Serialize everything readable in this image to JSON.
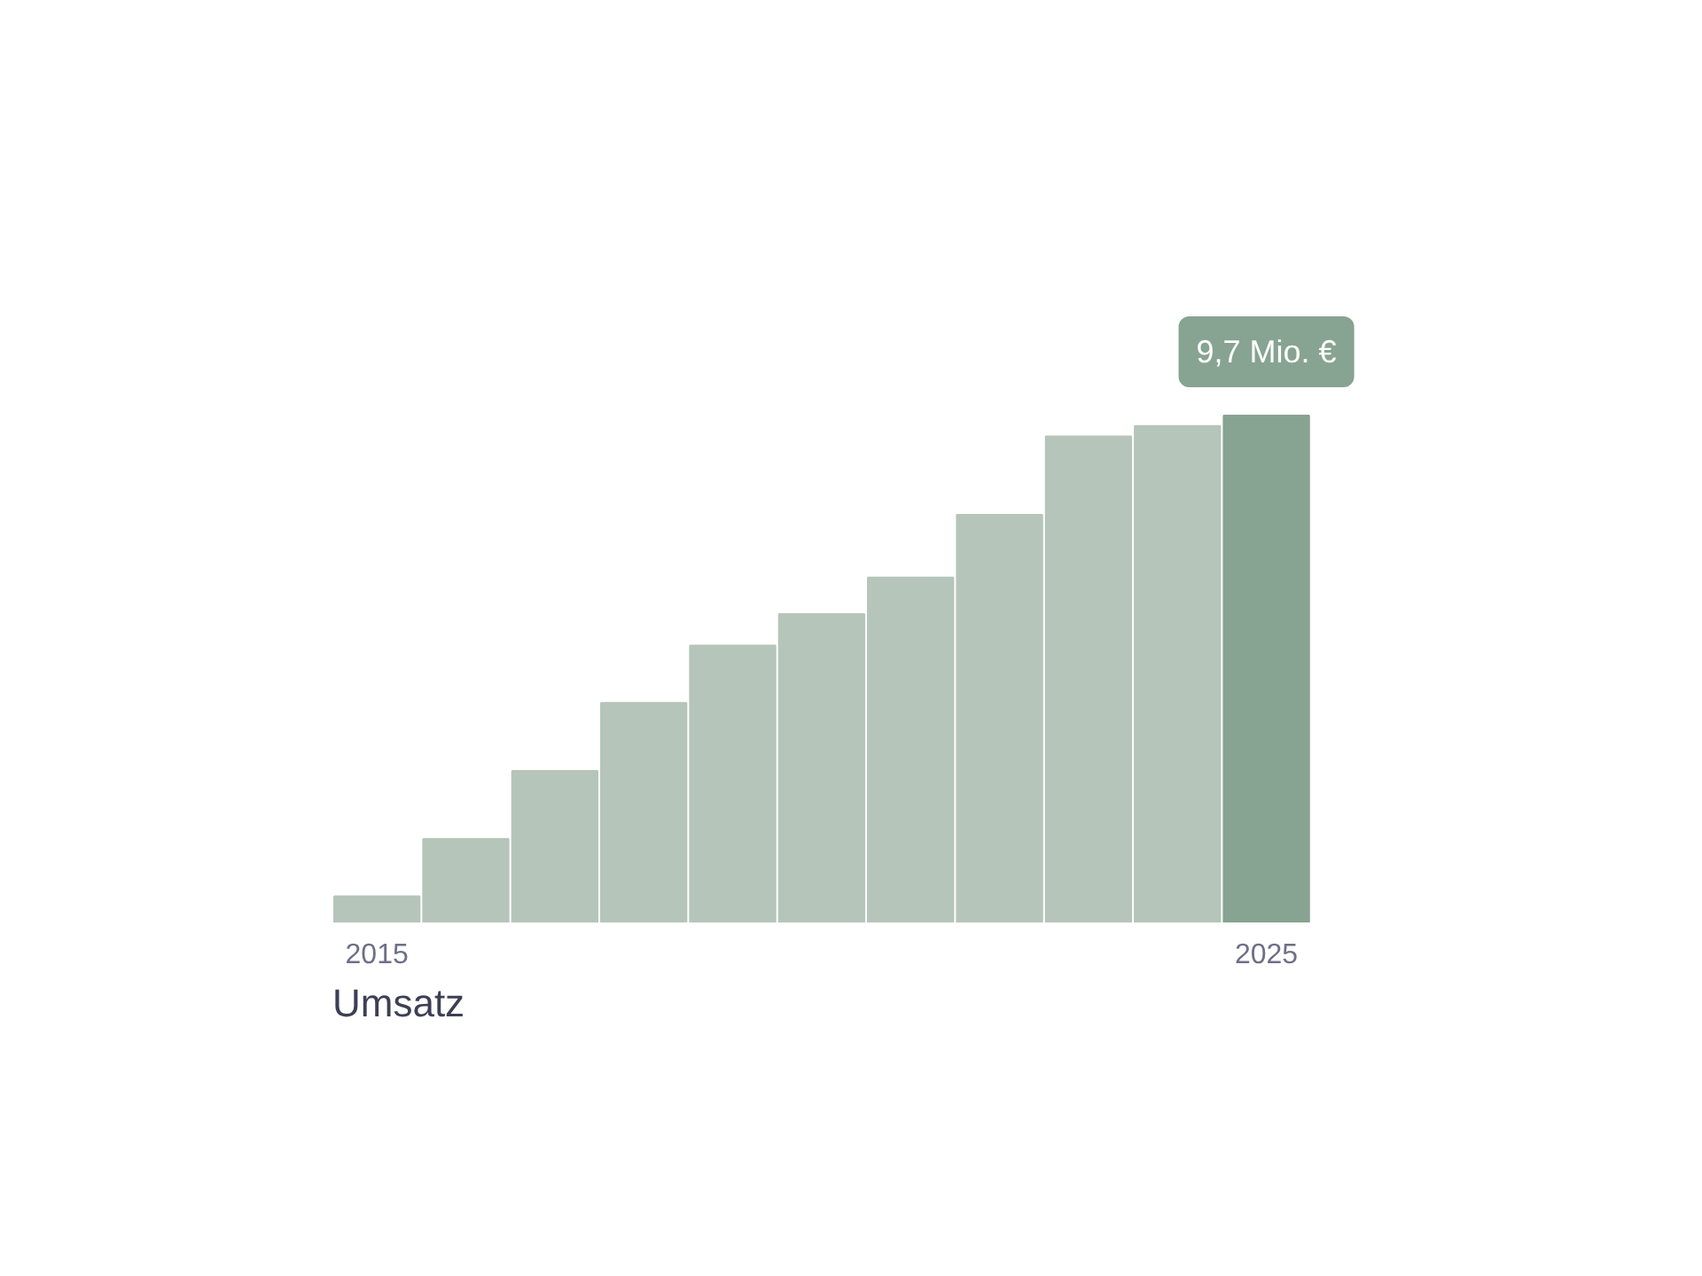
{
  "chart_data": {
    "type": "bar",
    "title": "Umsatz",
    "categories": [
      "2015",
      null,
      null,
      null,
      null,
      null,
      null,
      null,
      null,
      null,
      "2025"
    ],
    "values": [
      0.5,
      1.6,
      2.9,
      4.2,
      5.3,
      5.9,
      6.6,
      7.8,
      9.3,
      9.5,
      9.7
    ],
    "colors": [
      "#b5c5b9",
      "#b5c5b9",
      "#b5c5b9",
      "#b5c5b9",
      "#b5c5b9",
      "#b5c5b9",
      "#b5c5b9",
      "#b5c5b9",
      "#b5c5b9",
      "#b5c5b9",
      "#87a391"
    ],
    "value_labels": [
      null,
      null,
      null,
      null,
      null,
      null,
      null,
      null,
      null,
      null,
      "9,7 Mio. €"
    ],
    "tick_labels": "x",
    "grid": false
  }
}
